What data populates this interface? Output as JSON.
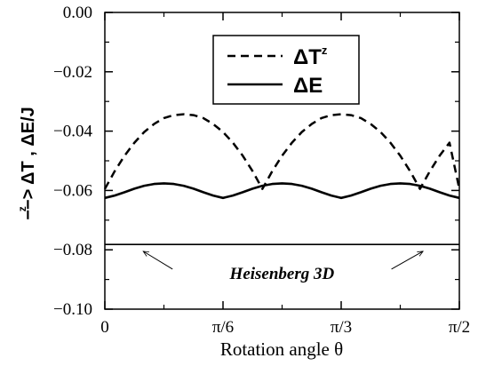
{
  "chart_data": {
    "type": "line",
    "xlabel": "Rotation angle θ",
    "ylabel": "−−> ΔT  ,  ΔE/J",
    "ylabel_sup": "z",
    "xlim": [
      0,
      1.5708
    ],
    "ylim": [
      -0.1,
      0.0
    ],
    "x_ticks": [
      {
        "value": 0,
        "label": "0"
      },
      {
        "value": 0.5236,
        "label": "π/6"
      },
      {
        "value": 1.0472,
        "label": "π/3"
      },
      {
        "value": 1.5708,
        "label": "π/2"
      }
    ],
    "y_ticks": [
      {
        "value": 0.0,
        "label": "0.00"
      },
      {
        "value": -0.02,
        "label": "−0.02"
      },
      {
        "value": -0.04,
        "label": "−0.04"
      },
      {
        "value": -0.06,
        "label": "−0.06"
      },
      {
        "value": -0.08,
        "label": "−0.08"
      },
      {
        "value": -0.1,
        "label": "−0.10"
      }
    ],
    "grid": false,
    "legend_placement": "top-center",
    "series": [
      {
        "name": "ΔT",
        "name_sup": "z",
        "style": "dashed",
        "x": [
          0,
          0.0436,
          0.0873,
          0.1309,
          0.1745,
          0.2182,
          0.2618,
          0.3054,
          0.3491,
          0.3927,
          0.4363,
          0.48,
          0.5236,
          0.5672,
          0.6109,
          0.6545,
          0.6981,
          0.7418,
          0.7854,
          0.829,
          0.8727,
          0.9163,
          0.9599,
          1.0036,
          1.0472,
          1.0908,
          1.1345,
          1.1781,
          1.2217,
          1.2654,
          1.309,
          1.3526,
          1.3963,
          1.4399,
          1.4835,
          1.5272,
          1.5708
        ],
        "y": [
          -0.0595,
          -0.0535,
          -0.0483,
          -0.0439,
          -0.0403,
          -0.0376,
          -0.0356,
          -0.0346,
          -0.0343,
          -0.0346,
          -0.0356,
          -0.0376,
          -0.0403,
          -0.0439,
          -0.0483,
          -0.0535,
          -0.0595,
          -0.0535,
          -0.0483,
          -0.0439,
          -0.0403,
          -0.0376,
          -0.0356,
          -0.0346,
          -0.0343,
          -0.0346,
          -0.0356,
          -0.0376,
          -0.0403,
          -0.0439,
          -0.0483,
          -0.0535,
          -0.0595,
          -0.0535,
          -0.0483,
          -0.0439,
          -0.0595
        ]
      },
      {
        "name": "ΔE",
        "style": "solid",
        "x": [
          0,
          0.0436,
          0.0873,
          0.1309,
          0.1745,
          0.2182,
          0.2618,
          0.3054,
          0.3491,
          0.3927,
          0.4363,
          0.48,
          0.5236,
          0.5672,
          0.6109,
          0.6545,
          0.6981,
          0.7418,
          0.7854,
          0.829,
          0.8727,
          0.9163,
          0.9599,
          1.0036,
          1.0472,
          1.0908,
          1.1345,
          1.1781,
          1.2217,
          1.2654,
          1.309,
          1.3526,
          1.3963,
          1.4399,
          1.4835,
          1.5272,
          1.5708
        ],
        "y": [
          -0.0625,
          -0.0617,
          -0.0606,
          -0.0594,
          -0.0584,
          -0.0578,
          -0.0576,
          -0.0578,
          -0.0584,
          -0.0594,
          -0.0606,
          -0.0617,
          -0.0625,
          -0.0617,
          -0.0606,
          -0.0594,
          -0.0584,
          -0.0578,
          -0.0576,
          -0.0578,
          -0.0584,
          -0.0594,
          -0.0606,
          -0.0617,
          -0.0625,
          -0.0617,
          -0.0606,
          -0.0594,
          -0.0584,
          -0.0578,
          -0.0576,
          -0.0578,
          -0.0584,
          -0.0594,
          -0.0606,
          -0.0617,
          -0.0625
        ]
      },
      {
        "name": "",
        "style": "solid-thin",
        "x": [
          0,
          1.5708
        ],
        "y": [
          -0.0782,
          -0.0782
        ]
      }
    ],
    "annotations": [
      {
        "text": "Heisenberg 3D",
        "x": 0.785,
        "y": -0.088,
        "arrows": [
          {
            "from": [
              0.3,
              -0.0865
            ],
            "to": [
              0.17,
              -0.0805
            ]
          },
          {
            "from": [
              1.27,
              -0.0865
            ],
            "to": [
              1.41,
              -0.0805
            ]
          }
        ]
      }
    ]
  }
}
